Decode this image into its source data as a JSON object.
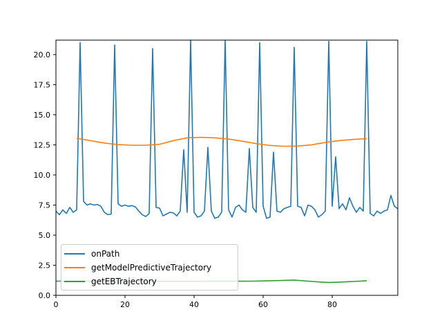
{
  "chart_data": {
    "type": "line",
    "title": "",
    "xlabel": "",
    "ylabel": "",
    "xlim": [
      0,
      99
    ],
    "ylim": [
      0,
      21.2
    ],
    "x_ticks": [
      0,
      20,
      40,
      60,
      80
    ],
    "x_tick_labels": [
      "0",
      "20",
      "40",
      "60",
      "80"
    ],
    "y_ticks": [
      0.0,
      2.5,
      5.0,
      7.5,
      10.0,
      12.5,
      15.0,
      17.5,
      20.0
    ],
    "y_tick_labels": [
      "0.0",
      "2.5",
      "5.0",
      "7.5",
      "10.0",
      "12.5",
      "15.0",
      "17.5",
      "20.0"
    ],
    "grid": false,
    "legend_position": "lower left",
    "series": [
      {
        "name": "onPath",
        "color": "#1f77b4",
        "x": [
          0,
          1,
          2,
          3,
          4,
          5,
          6,
          7,
          8,
          9,
          10,
          11,
          12,
          13,
          14,
          15,
          16,
          17,
          18,
          19,
          20,
          21,
          22,
          23,
          24,
          25,
          26,
          27,
          28,
          29,
          30,
          31,
          32,
          33,
          34,
          35,
          36,
          37,
          38,
          39,
          40,
          41,
          42,
          43,
          44,
          45,
          46,
          47,
          48,
          49,
          50,
          51,
          52,
          53,
          54,
          55,
          56,
          57,
          58,
          59,
          60,
          61,
          62,
          63,
          64,
          65,
          66,
          67,
          68,
          69,
          70,
          71,
          72,
          73,
          74,
          75,
          76,
          77,
          78,
          79,
          80,
          81,
          82,
          83,
          84,
          85,
          86,
          87,
          88,
          89,
          90,
          91,
          92,
          93,
          94,
          95,
          96,
          97,
          98,
          99
        ],
        "values": [
          7.0,
          6.7,
          7.1,
          6.8,
          7.3,
          6.9,
          7.1,
          21.0,
          7.8,
          7.5,
          7.6,
          7.5,
          7.55,
          7.4,
          6.9,
          6.7,
          6.75,
          20.8,
          7.6,
          7.4,
          7.5,
          7.4,
          7.45,
          7.35,
          7.0,
          6.7,
          6.55,
          6.8,
          20.5,
          7.3,
          7.25,
          6.6,
          6.75,
          6.9,
          6.85,
          6.6,
          7.0,
          12.1,
          6.9,
          21.2,
          6.9,
          6.5,
          6.6,
          7.0,
          12.3,
          7.0,
          6.4,
          6.5,
          6.9,
          21.2,
          7.1,
          6.5,
          7.3,
          7.5,
          7.1,
          6.9,
          12.2,
          7.3,
          6.9,
          21.0,
          7.4,
          6.4,
          6.5,
          11.9,
          7.0,
          6.9,
          7.2,
          7.3,
          7.4,
          20.6,
          7.4,
          7.3,
          6.6,
          7.5,
          7.4,
          7.1,
          6.5,
          6.7,
          7.0,
          21.1,
          7.4,
          11.5,
          7.2,
          7.6,
          7.1,
          8.1,
          7.4,
          6.9,
          7.3,
          7.0,
          21.1,
          6.8,
          6.6,
          7.0,
          6.8,
          7.0,
          7.1,
          8.3,
          7.4,
          7.2
        ]
      },
      {
        "name": "getModelPredictiveTrajectory",
        "color": "#ff7f0e",
        "x": [
          6,
          10,
          14,
          18,
          22,
          26,
          30,
          34,
          38,
          42,
          46,
          50,
          54,
          58,
          62,
          66,
          70,
          74,
          78,
          82,
          86,
          90
        ],
        "values": [
          13.05,
          12.85,
          12.65,
          12.52,
          12.47,
          12.47,
          12.55,
          12.85,
          13.08,
          13.12,
          13.08,
          12.98,
          12.8,
          12.6,
          12.45,
          12.38,
          12.4,
          12.5,
          12.7,
          12.85,
          12.95,
          13.02
        ]
      },
      {
        "name": "getEBTrajectory",
        "color": "#2ca02c",
        "x": [
          0,
          5,
          10,
          15,
          20,
          25,
          30,
          35,
          40,
          45,
          50,
          53,
          57,
          61,
          65,
          69,
          73,
          77,
          79,
          82,
          86,
          90
        ],
        "values": [
          1.18,
          1.18,
          1.17,
          1.17,
          1.16,
          1.16,
          1.16,
          1.16,
          1.16,
          1.17,
          1.17,
          1.17,
          1.18,
          1.2,
          1.23,
          1.27,
          1.18,
          1.1,
          1.07,
          1.1,
          1.15,
          1.21
        ]
      }
    ],
    "axis_color": "#000000",
    "background_color": "#ffffff"
  }
}
